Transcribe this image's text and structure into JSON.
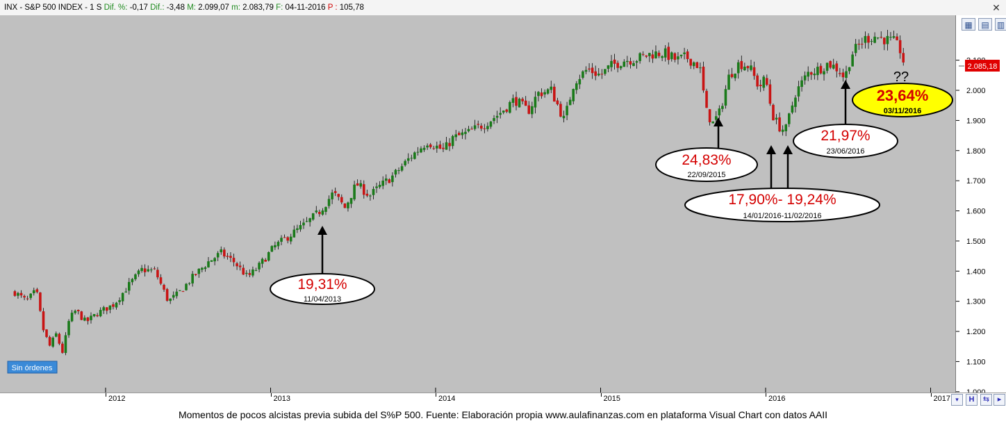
{
  "header": {
    "symbol": "INX - S&P 500 INDEX - 1 S",
    "dif_pct_label": "Dif. %:",
    "dif_pct_value": "-0,17",
    "dif_label": "Dif.:",
    "dif_value": "-3,48",
    "m_label": "M:",
    "m_value": "2.099,07",
    "m_low_label": "m:",
    "m_low_value": "2.083,79",
    "f_label": "F:",
    "f_value": "04-11-2016",
    "p_label": "P :",
    "p_value": "105,78"
  },
  "badge_label": "Sin órdenes",
  "last_price_label": "2.085,18",
  "question_marks": "??",
  "caption": "Momentos de pocos alcistas previa subida del S%P 500. Fuente: Elaboración propia www.aulafinanzas.com en plataforma Visual Chart con datos AAII",
  "colors": {
    "plot_bg": "#c0c0c0",
    "up_candle": "#1a7a1a",
    "down_candle": "#c81414",
    "annotation_red": "#d40000",
    "highlight_yellow": "#ffff00",
    "price_tag": "#e00000"
  },
  "chart_data": {
    "type": "candlestick",
    "x_axis_labels": [
      "2012",
      "2013",
      "2014",
      "2015",
      "2016",
      "2017"
    ],
    "y_ticks": [
      "1.000",
      "1.100",
      "1.200",
      "1.300",
      "1.400",
      "1.500",
      "1.600",
      "1.700",
      "1.800",
      "1.900",
      "2.000",
      "2.100"
    ],
    "ylim": [
      1000,
      2200
    ],
    "grid": false,
    "closes_path": [
      [
        2011.45,
        1330
      ],
      [
        2011.52,
        1300
      ],
      [
        2011.58,
        1335
      ],
      [
        2011.62,
        1210
      ],
      [
        2011.66,
        1150
      ],
      [
        2011.7,
        1190
      ],
      [
        2011.74,
        1130
      ],
      [
        2011.78,
        1240
      ],
      [
        2011.82,
        1270
      ],
      [
        2011.88,
        1230
      ],
      [
        2011.95,
        1260
      ],
      [
        2012.05,
        1290
      ],
      [
        2012.15,
        1360
      ],
      [
        2012.22,
        1405
      ],
      [
        2012.3,
        1400
      ],
      [
        2012.38,
        1300
      ],
      [
        2012.44,
        1325
      ],
      [
        2012.52,
        1375
      ],
      [
        2012.62,
        1430
      ],
      [
        2012.7,
        1460
      ],
      [
        2012.78,
        1430
      ],
      [
        2012.86,
        1380
      ],
      [
        2012.92,
        1410
      ],
      [
        2013.02,
        1480
      ],
      [
        2013.12,
        1520
      ],
      [
        2013.22,
        1560
      ],
      [
        2013.3,
        1600
      ],
      [
        2013.38,
        1660
      ],
      [
        2013.45,
        1610
      ],
      [
        2013.52,
        1690
      ],
      [
        2013.6,
        1650
      ],
      [
        2013.66,
        1680
      ],
      [
        2013.75,
        1720
      ],
      [
        2013.85,
        1780
      ],
      [
        2013.95,
        1830
      ],
      [
        2014.05,
        1800
      ],
      [
        2014.1,
        1840
      ],
      [
        2014.2,
        1860
      ],
      [
        2014.3,
        1890
      ],
      [
        2014.38,
        1920
      ],
      [
        2014.48,
        1970
      ],
      [
        2014.56,
        1930
      ],
      [
        2014.62,
        1990
      ],
      [
        2014.7,
        2000
      ],
      [
        2014.78,
        1900
      ],
      [
        2014.84,
        2030
      ],
      [
        2014.92,
        2070
      ],
      [
        2015.0,
        2050
      ],
      [
        2015.06,
        2080
      ],
      [
        2015.14,
        2100
      ],
      [
        2015.22,
        2105
      ],
      [
        2015.3,
        2120
      ],
      [
        2015.38,
        2125
      ],
      [
        2015.46,
        2100
      ],
      [
        2015.52,
        2110
      ],
      [
        2015.6,
        2080
      ],
      [
        2015.64,
        1930
      ],
      [
        2015.68,
        1890
      ],
      [
        2015.72,
        1925
      ],
      [
        2015.78,
        2050
      ],
      [
        2015.84,
        2090
      ],
      [
        2015.9,
        2080
      ],
      [
        2015.96,
        2010
      ],
      [
        2016.0,
        2040
      ],
      [
        2016.04,
        1920
      ],
      [
        2016.08,
        1880
      ],
      [
        2016.12,
        1865
      ],
      [
        2016.18,
        1990
      ],
      [
        2016.26,
        2060
      ],
      [
        2016.32,
        2070
      ],
      [
        2016.38,
        2090
      ],
      [
        2016.44,
        2070
      ],
      [
        2016.48,
        2040
      ],
      [
        2016.52,
        2120
      ],
      [
        2016.6,
        2170
      ],
      [
        2016.66,
        2180
      ],
      [
        2016.72,
        2170
      ],
      [
        2016.78,
        2160
      ],
      [
        2016.82,
        2130
      ],
      [
        2016.84,
        2085
      ]
    ],
    "annotations": [
      {
        "value": "19,31%",
        "date": "11/04/2013"
      },
      {
        "value": "24,83%",
        "date": "22/09/2015"
      },
      {
        "value": "17,90%- 19,24%",
        "date": "14/01/2016-11/02/2016"
      },
      {
        "value": "21,97%",
        "date": "23/06/2016"
      },
      {
        "value": "23,64%",
        "date": "03/11/2016"
      }
    ]
  }
}
